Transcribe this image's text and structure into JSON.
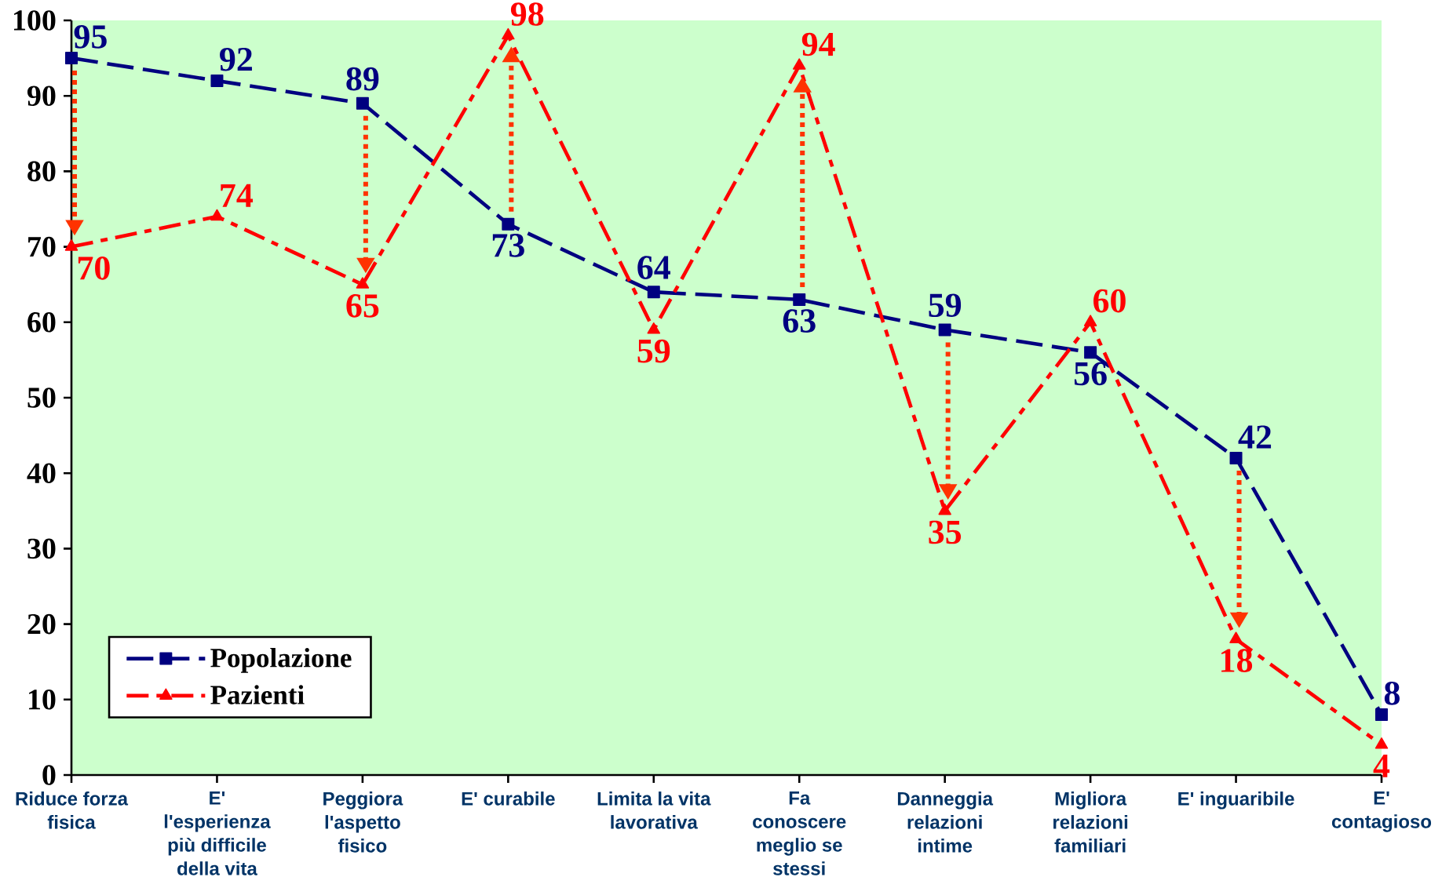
{
  "chart_data": {
    "type": "line",
    "categories": [
      "Riduce forza fisica",
      "E' l'esperienza più difficile della vita",
      "Peggiora l'aspetto fisico",
      "E' curabile",
      "Limita la vita lavorativa",
      "Fa conoscere meglio se stessi",
      "Danneggia relazioni intime",
      "Migliora relazioni familiari",
      "E' inguaribile",
      "E' contagioso"
    ],
    "series": [
      {
        "name": "Popolazione",
        "color": "#000080",
        "values": [
          95,
          92,
          89,
          73,
          64,
          63,
          59,
          56,
          42,
          8
        ],
        "marker": "square",
        "line_style": "dashed"
      },
      {
        "name": "Pazienti",
        "color": "#ff0000",
        "values": [
          70,
          74,
          65,
          98,
          59,
          94,
          35,
          60,
          18,
          4
        ],
        "marker": "triangle",
        "line_style": "dashdot"
      }
    ],
    "ylim": [
      0,
      100
    ],
    "yticks": [
      0,
      10,
      20,
      30,
      40,
      50,
      60,
      70,
      80,
      90,
      100
    ],
    "data_labels": true,
    "legend": "bottom left"
  }
}
